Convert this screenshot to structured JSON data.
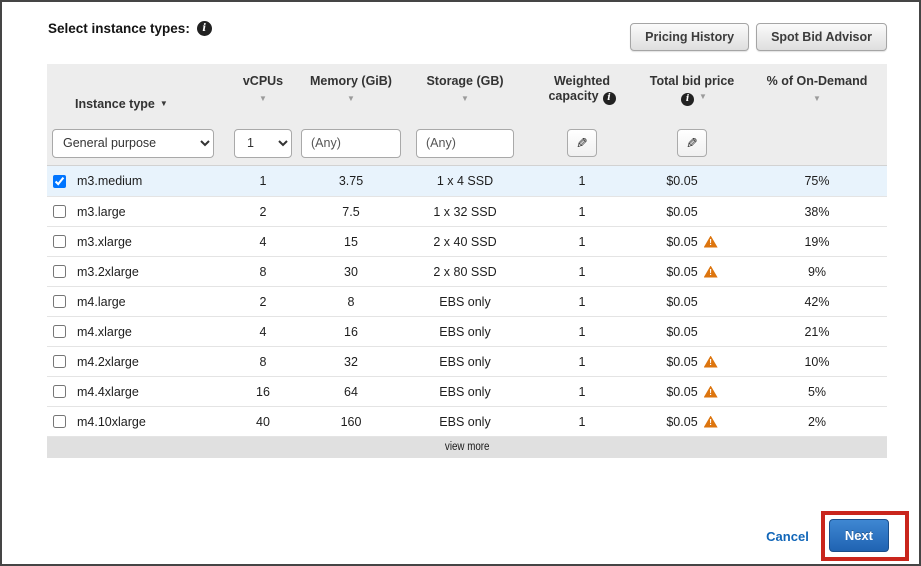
{
  "dialog": {
    "title": "Select instance types:"
  },
  "toolbar": {
    "pricing_history_label": "Pricing History",
    "spot_bid_advisor_label": "Spot Bid Advisor"
  },
  "table": {
    "columns": {
      "instance_type": "Instance type",
      "vcpus": "vCPUs",
      "memory": "Memory (GiB)",
      "storage": "Storage (GB)",
      "weighted_capacity": "Weighted capacity",
      "total_bid_price": "Total bid price",
      "on_demand_pct": "% of On-Demand"
    },
    "filters": {
      "instance_family": "General purpose",
      "min_vcpus": "1",
      "memory_filter": "(Any)",
      "storage_filter": "(Any)"
    },
    "rows": [
      {
        "checked": true,
        "selected": true,
        "instance_type": "m3.medium",
        "vcpus": "1",
        "memory": "3.75",
        "storage": "1 x 4 SSD",
        "weighted_capacity": "1",
        "bid_price": "$0.05",
        "warning": false,
        "on_demand_pct": "75%"
      },
      {
        "checked": false,
        "selected": false,
        "instance_type": "m3.large",
        "vcpus": "2",
        "memory": "7.5",
        "storage": "1 x 32 SSD",
        "weighted_capacity": "1",
        "bid_price": "$0.05",
        "warning": false,
        "on_demand_pct": "38%"
      },
      {
        "checked": false,
        "selected": false,
        "instance_type": "m3.xlarge",
        "vcpus": "4",
        "memory": "15",
        "storage": "2 x 40 SSD",
        "weighted_capacity": "1",
        "bid_price": "$0.05",
        "warning": true,
        "on_demand_pct": "19%"
      },
      {
        "checked": false,
        "selected": false,
        "instance_type": "m3.2xlarge",
        "vcpus": "8",
        "memory": "30",
        "storage": "2 x 80 SSD",
        "weighted_capacity": "1",
        "bid_price": "$0.05",
        "warning": true,
        "on_demand_pct": "9%"
      },
      {
        "checked": false,
        "selected": false,
        "instance_type": "m4.large",
        "vcpus": "2",
        "memory": "8",
        "storage": "EBS only",
        "weighted_capacity": "1",
        "bid_price": "$0.05",
        "warning": false,
        "on_demand_pct": "42%"
      },
      {
        "checked": false,
        "selected": false,
        "instance_type": "m4.xlarge",
        "vcpus": "4",
        "memory": "16",
        "storage": "EBS only",
        "weighted_capacity": "1",
        "bid_price": "$0.05",
        "warning": false,
        "on_demand_pct": "21%"
      },
      {
        "checked": false,
        "selected": false,
        "instance_type": "m4.2xlarge",
        "vcpus": "8",
        "memory": "32",
        "storage": "EBS only",
        "weighted_capacity": "1",
        "bid_price": "$0.05",
        "warning": true,
        "on_demand_pct": "10%"
      },
      {
        "checked": false,
        "selected": false,
        "instance_type": "m4.4xlarge",
        "vcpus": "16",
        "memory": "64",
        "storage": "EBS only",
        "weighted_capacity": "1",
        "bid_price": "$0.05",
        "warning": true,
        "on_demand_pct": "5%"
      },
      {
        "checked": false,
        "selected": false,
        "instance_type": "m4.10xlarge",
        "vcpus": "40",
        "memory": "160",
        "storage": "EBS only",
        "weighted_capacity": "1",
        "bid_price": "$0.05",
        "warning": true,
        "on_demand_pct": "2%"
      }
    ],
    "view_more_label": "view more"
  },
  "footer": {
    "cancel_label": "Cancel",
    "next_label": "Next"
  },
  "icons": {
    "info_glyph": "i",
    "pencil_glyph": "✎",
    "warning_glyph": "!",
    "sort_arrow_glyph": "▼",
    "column_arrow_glyph": "▼"
  },
  "colors": {
    "accent_blue": "#2e6fb7",
    "warning_orange": "#dd750e",
    "annotation_red": "#c9251c",
    "selected_row_blue": "#e8f3fc",
    "link_blue": "#1166b8",
    "header_grey": "#ededed"
  }
}
